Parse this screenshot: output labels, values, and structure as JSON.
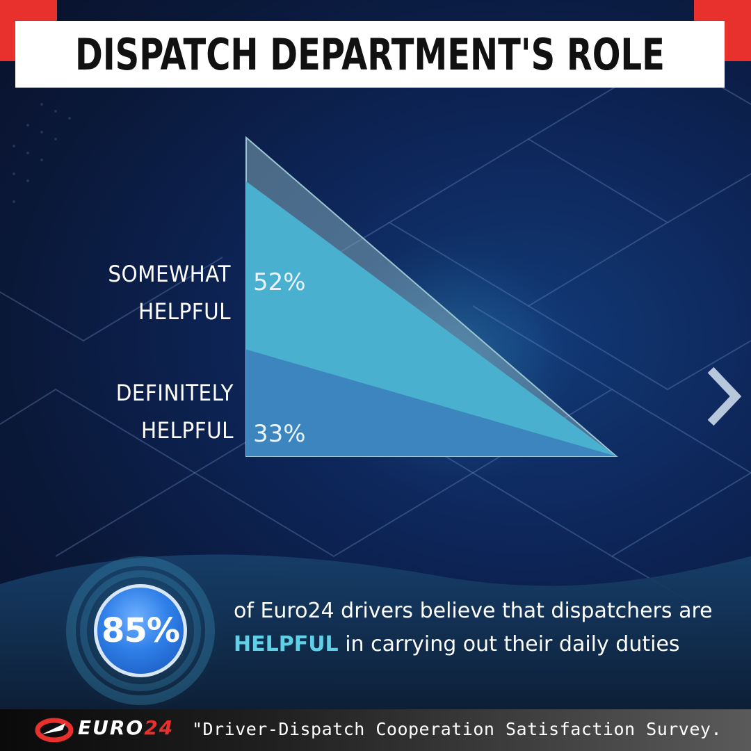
{
  "title": "DISPATCH DEPARTMENT'S ROLE",
  "colors": {
    "accent_red": "#e8302c",
    "title_bg": "#ffffff",
    "background": "#0b1a3c",
    "light_blue": "#4ab0cf",
    "mid_blue": "#3d85bf",
    "highlight_cyan": "#5fd0e6",
    "stat_circle": "#2f7fe8"
  },
  "chart_data": {
    "type": "area",
    "title": "DISPATCH DEPARTMENT'S ROLE",
    "xlabel": "",
    "ylabel": "",
    "stacked": true,
    "ylim": [
      0,
      100
    ],
    "series": [
      {
        "name": "DEFINITELY HELPFUL",
        "label": "33%",
        "value": 33,
        "color": "#3d85bf"
      },
      {
        "name": "SOMEWHAT HELPFUL",
        "label": "52%",
        "value": 52,
        "color": "#4ab0cf"
      }
    ],
    "total": 85
  },
  "labels": {
    "somewhat_line1": "SOMEWHAT",
    "somewhat_line2": "HELPFUL",
    "definitely_line1": "DEFINITELY",
    "definitely_line2": "HELPFUL"
  },
  "stat": {
    "value": "85%",
    "line1": "of Euro24 drivers believe that dispatchers are",
    "highlight": "HELPFUL",
    "line2_rest": " in carrying out their daily duties"
  },
  "navigation": {
    "next_icon": "chevron-right-icon"
  },
  "footer": {
    "logo_text": "EURO",
    "logo_number": "24",
    "source": "\"Driver-Dispatch Cooperation Satisfaction Survey."
  }
}
